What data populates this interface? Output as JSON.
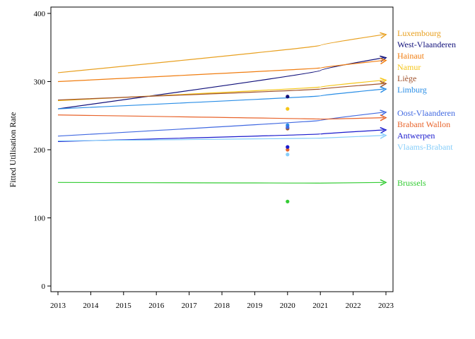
{
  "chart_data": {
    "type": "line",
    "ylabel": "Fitted Utilisation Rate",
    "xlabel": "",
    "xlim": [
      2013,
      2023
    ],
    "ylim": [
      0,
      410
    ],
    "x_ticks": [
      "2013",
      "2014",
      "2015",
      "2016",
      "2017",
      "2018",
      "2019",
      "2020",
      "2021",
      "2022",
      "2023"
    ],
    "y_ticks": [
      "0",
      "100",
      "200",
      "300",
      "400"
    ],
    "grid": false,
    "legend": "right-labels",
    "x": [
      2013,
      2021,
      2023
    ],
    "series": [
      {
        "name": "Luxembourg",
        "color": "#e8a020",
        "values": [
          313,
          353,
          369
        ],
        "point_2020": null
      },
      {
        "name": "West-Vlaanderen",
        "color": "#10107a",
        "values": [
          260,
          316,
          335
        ],
        "point_2020": 278
      },
      {
        "name": "Hainaut",
        "color": "#f07d10",
        "values": [
          300,
          320,
          331
        ],
        "point_2020": null
      },
      {
        "name": "Namur",
        "color": "#f5c518",
        "values": [
          272,
          292,
          302
        ],
        "point_2020": 260
      },
      {
        "name": "Liège",
        "color": "#a0522d",
        "values": [
          273,
          289,
          297
        ],
        "point_2020": 231
      },
      {
        "name": "Limburg",
        "color": "#2a8ee6",
        "values": [
          260,
          279,
          289
        ],
        "point_2020": 236
      },
      {
        "name": "Oost-Vlaanderen",
        "color": "#4169e1",
        "values": [
          220,
          243,
          255
        ],
        "point_2020": 233
      },
      {
        "name": "Brabant Wallon",
        "color": "#e8632a",
        "values": [
          251,
          245,
          247
        ],
        "point_2020": 200
      },
      {
        "name": "Antwerpen",
        "color": "#1a1acd",
        "values": [
          212,
          223,
          229
        ],
        "point_2020": 204
      },
      {
        "name": "Vlaams-Brabant",
        "color": "#87cefa",
        "values": [
          213,
          217,
          221
        ],
        "point_2020": 193
      },
      {
        "name": "Brussels",
        "color": "#33cc33",
        "values": [
          152,
          151,
          152
        ],
        "point_2020": 124
      }
    ]
  }
}
